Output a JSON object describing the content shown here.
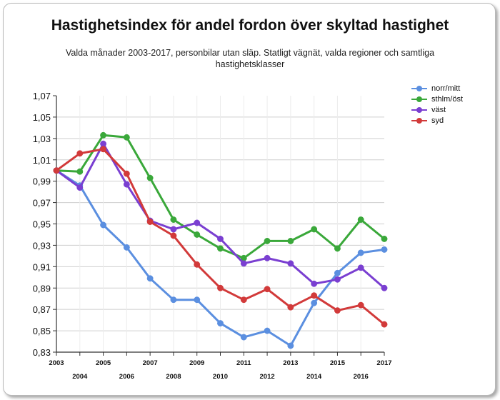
{
  "chart_data": {
    "type": "line",
    "title": "Hastighetsindex för andel fordon över skyltad hastighet",
    "subtitle": "Valda månader 2003-2017, personbilar utan släp. Statligt vägnät, valda regioner och samtliga hastighetsklasser",
    "x": [
      "2003",
      "2004",
      "2005",
      "2006",
      "2007",
      "2008",
      "2009",
      "2010",
      "2011",
      "2012",
      "2013",
      "2014",
      "2015",
      "2016",
      "2017"
    ],
    "ylim": [
      0.83,
      1.07
    ],
    "yticks": [
      "1,07",
      "1,05",
      "1,03",
      "1,01",
      "0,99",
      "0,97",
      "0,95",
      "0,93",
      "0,91",
      "0,89",
      "0,87",
      "0,85",
      "0,83"
    ],
    "grid": true,
    "legend_position": "top-right",
    "series": [
      {
        "name": "norr/mitt",
        "color": "#5b8fe0",
        "values": [
          1.0,
          0.986,
          0.949,
          0.928,
          0.899,
          0.879,
          0.879,
          0.857,
          0.844,
          0.85,
          0.836,
          0.876,
          0.904,
          0.923,
          0.926
        ]
      },
      {
        "name": "sthlm/öst",
        "color": "#3aa83a",
        "values": [
          1.0,
          0.999,
          1.033,
          1.031,
          0.993,
          0.954,
          0.94,
          0.927,
          0.918,
          0.934,
          0.934,
          0.945,
          0.927,
          0.954,
          0.936
        ]
      },
      {
        "name": "väst",
        "color": "#7a3fd1",
        "values": [
          1.0,
          0.984,
          1.025,
          0.987,
          0.953,
          0.945,
          0.951,
          0.936,
          0.913,
          0.918,
          0.913,
          0.894,
          0.898,
          0.909,
          0.89
        ]
      },
      {
        "name": "syd",
        "color": "#d23a3a",
        "values": [
          1.0,
          1.016,
          1.02,
          0.997,
          0.952,
          0.939,
          0.912,
          0.89,
          0.879,
          0.889,
          0.872,
          0.883,
          0.869,
          0.874,
          0.856
        ]
      }
    ]
  }
}
